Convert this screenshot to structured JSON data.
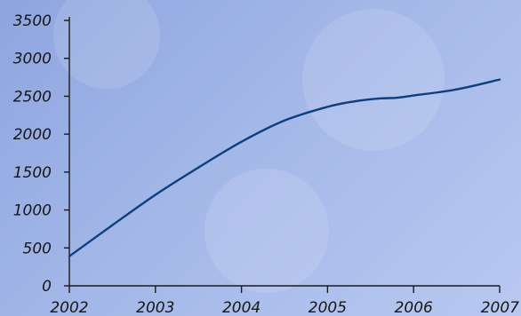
{
  "chart_data": {
    "type": "line",
    "title": "",
    "xlabel": "",
    "ylabel": "",
    "x": [
      2002,
      2002.5,
      2003,
      2003.5,
      2004,
      2004.5,
      2005,
      2005.3,
      2005.6,
      2005.8,
      2006,
      2006.5,
      2007
    ],
    "series": [
      {
        "values": [
          390,
          800,
          1200,
          1560,
          1900,
          2180,
          2360,
          2430,
          2470,
          2480,
          2510,
          2590,
          2720
        ],
        "color": "#0c3f7e"
      }
    ],
    "xticks": [
      "2002",
      "2003",
      "2004",
      "2005",
      "2006",
      "2007"
    ],
    "yticks": [
      "0",
      "500",
      "1000",
      "1500",
      "2000",
      "2500",
      "3000",
      "3500"
    ],
    "xlim": [
      2002,
      2007
    ],
    "ylim": [
      0,
      3500
    ],
    "grid": false,
    "legend": "none"
  }
}
